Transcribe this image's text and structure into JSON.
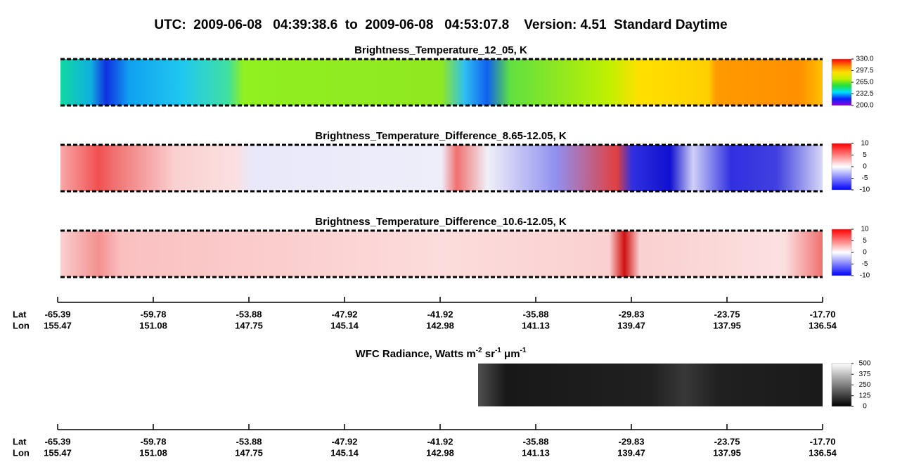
{
  "title": "UTC:  2009-06-08   04:39:38.6  to  2009-06-08   04:53:07.8    Version: 4.51  Standard Daytime",
  "chart_data": [
    {
      "type": "image",
      "title": "Brightness_Temperature_12_05, K",
      "ylim": [
        200,
        330
      ],
      "yticks": [
        {
          "value": 200,
          "label": "200.0"
        },
        {
          "value": 232.5,
          "label": "232.5"
        },
        {
          "value": 265,
          "label": "265.0"
        },
        {
          "value": 297.5,
          "label": "297.5"
        },
        {
          "value": 330,
          "label": "330.0"
        }
      ],
      "colormap": [
        "#8a00d0",
        "#1020ff",
        "#00e0ff",
        "#20e040",
        "#c0f000",
        "#ffe000",
        "#ff8000",
        "#ff0000"
      ]
    },
    {
      "type": "image",
      "title": "Brightness_Temperature_Difference_8.65-12.05, K",
      "ylim": [
        -10,
        10
      ],
      "yticks": [
        -10,
        -5,
        0,
        5,
        10
      ],
      "colormap": [
        "#0000ff",
        "#ffffff",
        "#ff0000"
      ]
    },
    {
      "type": "image",
      "title": "Brightness_Temperature_Difference_10.6-12.05, K",
      "ylim": [
        -10,
        10
      ],
      "yticks": [
        -10,
        -5,
        0,
        5,
        10
      ],
      "colormap": [
        "#0000ff",
        "#ffffff",
        "#ff0000"
      ]
    },
    {
      "type": "image",
      "title_parts": [
        {
          "text": "WFC Radiance, Watts m"
        },
        {
          "text": "-2",
          "sup": true
        },
        {
          "text": " sr"
        },
        {
          "text": "-1",
          "sup": true
        },
        {
          "text": " μm"
        },
        {
          "text": "-1",
          "sup": true
        }
      ],
      "ylim": [
        0,
        500
      ],
      "yticks": [
        0,
        125,
        250,
        375,
        500
      ],
      "colormap": [
        "#000000",
        "#ffffff"
      ]
    }
  ],
  "track_axes": [
    {
      "row_labels": [
        "Lat",
        "Lon"
      ],
      "lat": [
        "-65.39",
        "-59.78",
        "-53.88",
        "-47.92",
        "-41.92",
        "-35.88",
        "-29.83",
        "-23.75",
        "-17.70"
      ],
      "lon": [
        "155.47",
        "151.08",
        "147.75",
        "145.14",
        "142.98",
        "141.13",
        "139.47",
        "137.95",
        "136.54"
      ]
    },
    {
      "row_labels": [
        "Lat",
        "Lon"
      ],
      "lat": [
        "-65.39",
        "-59.78",
        "-53.88",
        "-47.92",
        "-41.92",
        "-35.88",
        "-29.83",
        "-23.75",
        "-17.70"
      ],
      "lon": [
        "155.47",
        "151.08",
        "147.75",
        "145.14",
        "142.98",
        "141.13",
        "139.47",
        "137.95",
        "136.54"
      ]
    }
  ]
}
